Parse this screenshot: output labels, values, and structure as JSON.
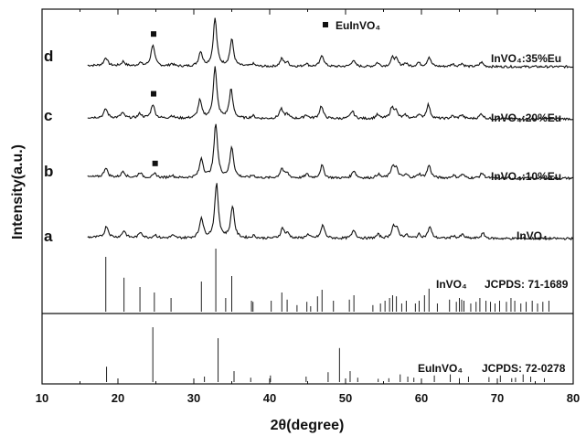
{
  "chart_data": {
    "type": "line",
    "xlabel": "2θ(degree)",
    "ylabel": "Intensity(a.u.)",
    "xlim": [
      10,
      80
    ],
    "xticks": [
      "10",
      "20",
      "30",
      "40",
      "50",
      "60",
      "70",
      "80"
    ],
    "legend": {
      "marker": "square",
      "label": "EuInVO₄",
      "placement": "top-center"
    },
    "series": [
      {
        "letter": "d",
        "name": "InVO₄:35%Eu",
        "impurity_marker_at": 24.7,
        "peaks": [
          {
            "x": 18.4,
            "h": 0.13
          },
          {
            "x": 20.7,
            "h": 0.07
          },
          {
            "x": 22.9,
            "h": 0.05
          },
          {
            "x": 24.6,
            "h": 0.34
          },
          {
            "x": 27.1,
            "h": 0.04
          },
          {
            "x": 30.9,
            "h": 0.23
          },
          {
            "x": 32.8,
            "h": 0.75
          },
          {
            "x": 35.0,
            "h": 0.42
          },
          {
            "x": 37.8,
            "h": 0.04
          },
          {
            "x": 41.6,
            "h": 0.12
          },
          {
            "x": 42.3,
            "h": 0.06
          },
          {
            "x": 44.8,
            "h": 0.05
          },
          {
            "x": 46.9,
            "h": 0.18
          },
          {
            "x": 51.0,
            "h": 0.1
          },
          {
            "x": 54.2,
            "h": 0.06
          },
          {
            "x": 56.2,
            "h": 0.13
          },
          {
            "x": 56.7,
            "h": 0.1
          },
          {
            "x": 57.9,
            "h": 0.05
          },
          {
            "x": 59.6,
            "h": 0.06
          },
          {
            "x": 61.0,
            "h": 0.15
          },
          {
            "x": 64.1,
            "h": 0.04
          },
          {
            "x": 65.3,
            "h": 0.05
          },
          {
            "x": 67.9,
            "h": 0.07
          }
        ]
      },
      {
        "letter": "c",
        "name": "InVO₄:20%Eu",
        "impurity_marker_at": 24.7,
        "peaks": [
          {
            "x": 18.4,
            "h": 0.14
          },
          {
            "x": 20.6,
            "h": 0.08
          },
          {
            "x": 22.9,
            "h": 0.07
          },
          {
            "x": 24.6,
            "h": 0.22
          },
          {
            "x": 27.1,
            "h": 0.04
          },
          {
            "x": 30.8,
            "h": 0.28
          },
          {
            "x": 32.8,
            "h": 0.8
          },
          {
            "x": 34.9,
            "h": 0.45
          },
          {
            "x": 37.8,
            "h": 0.04
          },
          {
            "x": 41.5,
            "h": 0.15
          },
          {
            "x": 42.3,
            "h": 0.07
          },
          {
            "x": 44.8,
            "h": 0.06
          },
          {
            "x": 46.8,
            "h": 0.2
          },
          {
            "x": 50.9,
            "h": 0.12
          },
          {
            "x": 54.2,
            "h": 0.06
          },
          {
            "x": 56.1,
            "h": 0.16
          },
          {
            "x": 56.6,
            "h": 0.12
          },
          {
            "x": 57.9,
            "h": 0.05
          },
          {
            "x": 59.6,
            "h": 0.06
          },
          {
            "x": 60.9,
            "h": 0.22
          },
          {
            "x": 64.1,
            "h": 0.04
          },
          {
            "x": 65.3,
            "h": 0.06
          },
          {
            "x": 67.9,
            "h": 0.08
          }
        ]
      },
      {
        "letter": "b",
        "name": "InVO₄:10%Eu",
        "impurity_marker_at": 24.9,
        "peaks": [
          {
            "x": 18.4,
            "h": 0.15
          },
          {
            "x": 20.7,
            "h": 0.1
          },
          {
            "x": 22.9,
            "h": 0.08
          },
          {
            "x": 24.9,
            "h": 0.06
          },
          {
            "x": 27.1,
            "h": 0.04
          },
          {
            "x": 31.0,
            "h": 0.3
          },
          {
            "x": 32.9,
            "h": 0.85
          },
          {
            "x": 35.0,
            "h": 0.48
          },
          {
            "x": 37.8,
            "h": 0.04
          },
          {
            "x": 41.6,
            "h": 0.15
          },
          {
            "x": 42.3,
            "h": 0.07
          },
          {
            "x": 44.9,
            "h": 0.06
          },
          {
            "x": 46.9,
            "h": 0.2
          },
          {
            "x": 51.1,
            "h": 0.12
          },
          {
            "x": 54.3,
            "h": 0.06
          },
          {
            "x": 56.2,
            "h": 0.18
          },
          {
            "x": 56.7,
            "h": 0.13
          },
          {
            "x": 58.0,
            "h": 0.05
          },
          {
            "x": 59.7,
            "h": 0.06
          },
          {
            "x": 61.0,
            "h": 0.2
          },
          {
            "x": 64.2,
            "h": 0.04
          },
          {
            "x": 65.4,
            "h": 0.06
          },
          {
            "x": 68.0,
            "h": 0.08
          }
        ]
      },
      {
        "letter": "a",
        "name": "InVO₄",
        "impurity_marker_at": null,
        "peaks": [
          {
            "x": 18.5,
            "h": 0.18
          },
          {
            "x": 20.8,
            "h": 0.11
          },
          {
            "x": 23.0,
            "h": 0.09
          },
          {
            "x": 24.9,
            "h": 0.05
          },
          {
            "x": 27.2,
            "h": 0.04
          },
          {
            "x": 31.0,
            "h": 0.32
          },
          {
            "x": 33.0,
            "h": 0.85
          },
          {
            "x": 35.1,
            "h": 0.5
          },
          {
            "x": 37.9,
            "h": 0.04
          },
          {
            "x": 41.7,
            "h": 0.16
          },
          {
            "x": 42.4,
            "h": 0.07
          },
          {
            "x": 45.0,
            "h": 0.06
          },
          {
            "x": 47.0,
            "h": 0.21
          },
          {
            "x": 51.1,
            "h": 0.13
          },
          {
            "x": 54.3,
            "h": 0.06
          },
          {
            "x": 56.3,
            "h": 0.18
          },
          {
            "x": 56.8,
            "h": 0.13
          },
          {
            "x": 58.0,
            "h": 0.05
          },
          {
            "x": 59.7,
            "h": 0.06
          },
          {
            "x": 61.1,
            "h": 0.18
          },
          {
            "x": 64.2,
            "h": 0.04
          },
          {
            "x": 65.4,
            "h": 0.06
          },
          {
            "x": 68.1,
            "h": 0.08
          }
        ]
      }
    ],
    "references": [
      {
        "phase": "InVO₄",
        "card": "JCPDS: 71-1689",
        "lines": [
          [
            18.4,
            1.0
          ],
          [
            20.8,
            0.62
          ],
          [
            22.9,
            0.45
          ],
          [
            24.8,
            0.35
          ],
          [
            27.0,
            0.25
          ],
          [
            31.0,
            0.55
          ],
          [
            32.9,
            1.15
          ],
          [
            34.2,
            0.25
          ],
          [
            35.0,
            0.65
          ],
          [
            37.6,
            0.2
          ],
          [
            37.8,
            0.18
          ],
          [
            40.2,
            0.2
          ],
          [
            41.6,
            0.35
          ],
          [
            42.3,
            0.22
          ],
          [
            43.6,
            0.12
          ],
          [
            44.9,
            0.18
          ],
          [
            45.4,
            0.1
          ],
          [
            46.3,
            0.28
          ],
          [
            46.9,
            0.4
          ],
          [
            48.4,
            0.2
          ],
          [
            50.5,
            0.22
          ],
          [
            51.1,
            0.3
          ],
          [
            53.6,
            0.12
          ],
          [
            54.6,
            0.15
          ],
          [
            55.2,
            0.2
          ],
          [
            55.8,
            0.25
          ],
          [
            56.2,
            0.3
          ],
          [
            56.7,
            0.28
          ],
          [
            57.4,
            0.15
          ],
          [
            58.0,
            0.2
          ],
          [
            59.2,
            0.15
          ],
          [
            59.7,
            0.2
          ],
          [
            60.4,
            0.3
          ],
          [
            61.0,
            0.42
          ],
          [
            62.1,
            0.15
          ],
          [
            63.7,
            0.22
          ],
          [
            64.6,
            0.18
          ],
          [
            65.0,
            0.25
          ],
          [
            65.3,
            0.22
          ],
          [
            65.6,
            0.2
          ],
          [
            66.5,
            0.15
          ],
          [
            67.2,
            0.18
          ],
          [
            67.7,
            0.25
          ],
          [
            68.5,
            0.2
          ],
          [
            69.1,
            0.18
          ],
          [
            69.7,
            0.15
          ],
          [
            70.3,
            0.2
          ],
          [
            71.2,
            0.18
          ],
          [
            71.8,
            0.25
          ],
          [
            72.3,
            0.2
          ],
          [
            73.1,
            0.15
          ],
          [
            73.8,
            0.18
          ],
          [
            74.6,
            0.2
          ],
          [
            75.3,
            0.15
          ],
          [
            76.0,
            0.18
          ],
          [
            76.8,
            0.2
          ]
        ]
      },
      {
        "phase": "EuInVO₄",
        "card": "JCPDS: 72-0278",
        "lines": [
          [
            18.5,
            0.28
          ],
          [
            24.6,
            1.0
          ],
          [
            31.4,
            0.1
          ],
          [
            33.2,
            0.8
          ],
          [
            35.3,
            0.2
          ],
          [
            37.5,
            0.08
          ],
          [
            40.1,
            0.12
          ],
          [
            44.8,
            0.1
          ],
          [
            47.7,
            0.18
          ],
          [
            49.2,
            0.62
          ],
          [
            50.6,
            0.2
          ],
          [
            51.6,
            0.08
          ],
          [
            54.3,
            0.06
          ],
          [
            55.7,
            0.07
          ],
          [
            57.2,
            0.14
          ],
          [
            58.2,
            0.1
          ],
          [
            59.0,
            0.08
          ],
          [
            61.7,
            0.12
          ],
          [
            63.8,
            0.14
          ],
          [
            65.0,
            0.07
          ],
          [
            66.2,
            0.1
          ],
          [
            68.9,
            0.09
          ],
          [
            70.4,
            0.12
          ],
          [
            71.9,
            0.07
          ],
          [
            72.4,
            0.08
          ],
          [
            73.4,
            0.14
          ],
          [
            74.4,
            0.1
          ],
          [
            76.2,
            0.07
          ]
        ]
      }
    ]
  }
}
